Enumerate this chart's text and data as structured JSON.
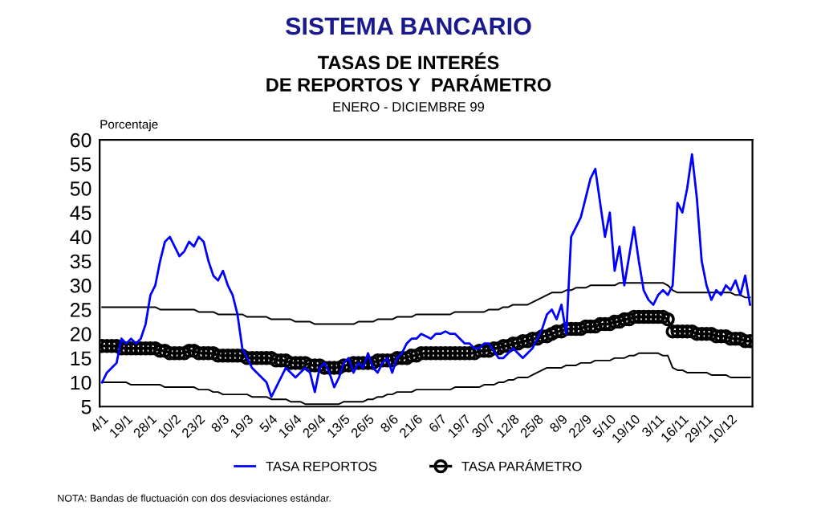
{
  "chart_data": {
    "type": "line",
    "title": "SISTEMA BANCARIO",
    "subtitle": "TASAS DE INTERÉS\nDE REPORTOS Y  PARÁMETRO\nENERO - DICIEMBRE 99",
    "ylabel": "Porcentaje",
    "annotations": [
      "NOTA: Bandas de fluctuación con dos desviaciones estándar."
    ],
    "categories": [
      "4/1",
      null,
      null,
      null,
      null,
      "19/1",
      null,
      null,
      null,
      null,
      "28/1",
      null,
      null,
      null,
      null,
      "10/2",
      null,
      null,
      null,
      null,
      "23/2",
      null,
      null,
      null,
      null,
      "8/3",
      null,
      null,
      null,
      null,
      "19/3",
      null,
      null,
      null,
      null,
      "5/4",
      null,
      null,
      null,
      null,
      "16/4",
      null,
      null,
      null,
      null,
      "29/4",
      null,
      null,
      null,
      null,
      "13/5",
      null,
      null,
      null,
      null,
      "26/5",
      null,
      null,
      null,
      null,
      "8/6",
      null,
      null,
      null,
      null,
      "21/6",
      null,
      null,
      null,
      null,
      "6/7",
      null,
      null,
      null,
      null,
      "19/7",
      null,
      null,
      null,
      null,
      "30/7",
      null,
      null,
      null,
      null,
      "12/8",
      null,
      null,
      null,
      null,
      "25/8",
      null,
      null,
      null,
      null,
      "8/9",
      null,
      null,
      null,
      null,
      "22/9",
      null,
      null,
      null,
      null,
      "5/10",
      null,
      null,
      null,
      null,
      "19/10",
      null,
      null,
      null,
      null,
      "3/11",
      null,
      null,
      null,
      null,
      "16/11",
      null,
      null,
      null,
      null,
      "29/11",
      null,
      null,
      null,
      null,
      "10/12",
      null,
      null,
      null,
      null
    ],
    "ylim": [
      5,
      60
    ],
    "yticks": [
      5,
      10,
      15,
      20,
      25,
      30,
      35,
      40,
      45,
      50,
      55,
      60
    ],
    "grid": false,
    "legend": "bottom",
    "series": [
      {
        "name": "TASA REPORTOS",
        "color": "#0000ff",
        "marker": "none",
        "values": [
          10,
          12,
          13,
          14,
          19,
          18,
          19,
          18,
          19,
          22,
          28,
          30,
          35,
          39,
          40,
          38,
          36,
          37,
          39,
          38,
          40,
          39,
          35,
          32,
          31,
          33,
          30,
          28,
          24,
          17,
          15,
          13,
          12,
          11,
          10,
          7,
          9,
          11,
          13,
          12,
          11,
          12,
          13,
          12,
          8,
          13,
          14,
          12,
          9,
          11,
          14,
          15,
          12,
          14,
          13,
          16,
          13,
          12,
          14,
          15,
          12,
          15,
          16,
          18,
          19,
          19,
          20,
          19.5,
          19,
          20,
          20,
          20.5,
          20,
          20,
          19,
          18,
          18,
          17,
          17,
          18,
          18,
          16.5,
          15,
          15,
          16,
          17,
          16,
          15,
          16,
          17,
          19,
          21,
          24,
          25,
          23,
          26,
          20,
          40,
          42,
          44,
          48,
          52,
          54,
          47,
          40,
          45,
          33,
          38,
          30,
          36,
          42,
          35,
          29,
          27,
          26,
          28,
          29,
          28,
          30,
          47,
          45,
          50,
          57,
          48,
          35,
          30,
          27,
          29,
          28,
          30,
          29,
          31,
          28,
          32,
          26
        ]
      },
      {
        "name": "TASA PARÁMETRO",
        "color": "#000000",
        "marker": "circle",
        "values": [
          17.5,
          17.5,
          17.5,
          17.5,
          17,
          17,
          17,
          17,
          17,
          17,
          17,
          17,
          16.5,
          16.5,
          16,
          16,
          16,
          16,
          16.5,
          16.5,
          16,
          16,
          16,
          16,
          15.5,
          15.5,
          15.5,
          15.5,
          15.5,
          15.5,
          15,
          15,
          15,
          15,
          15,
          15,
          14.5,
          14.5,
          14.5,
          14,
          14,
          14,
          14,
          13.5,
          13.5,
          13.5,
          13,
          13,
          13,
          13,
          13.5,
          13.5,
          14,
          14,
          14,
          14,
          14,
          14.5,
          14.5,
          14.5,
          14.5,
          15,
          15,
          15,
          15.5,
          15.5,
          16,
          16,
          16,
          16,
          16,
          16,
          16,
          16,
          16,
          16,
          16,
          16,
          16.5,
          16.5,
          16.5,
          17,
          17,
          17.5,
          17.5,
          18,
          18,
          18.5,
          18.5,
          19,
          19,
          19.5,
          19.5,
          20,
          20.5,
          20.5,
          21,
          21,
          21,
          21,
          21.5,
          21.5,
          21.5,
          22,
          22,
          22,
          22.5,
          22.5,
          23,
          23,
          23.5,
          23.5,
          23.5,
          23.5,
          23.5,
          23.5,
          23.5,
          23,
          20.5,
          20.5,
          20.5,
          20.5,
          20.5,
          20,
          20,
          20,
          20,
          19.5,
          19.5,
          19.5,
          19,
          19,
          19,
          18.5,
          18.5
        ]
      },
      {
        "color": "#000000",
        "marker": "none",
        "values": [
          25.5,
          25.5,
          25.5,
          25.5,
          25.5,
          25.5,
          25.5,
          25.5,
          25.5,
          25.5,
          25.5,
          25.5,
          25,
          25,
          25,
          25,
          25,
          25,
          25,
          25,
          24.5,
          24.5,
          24.5,
          24.5,
          24,
          24,
          24,
          24,
          24,
          24,
          23.5,
          23.5,
          23.5,
          23.5,
          23.5,
          23,
          23,
          23,
          23,
          23,
          22.5,
          22.5,
          22.5,
          22.5,
          22,
          22,
          22,
          22,
          22,
          22,
          22,
          22,
          22,
          22.5,
          22.5,
          22.5,
          22.5,
          23,
          23,
          23,
          23,
          23.5,
          23.5,
          23.5,
          23.5,
          24,
          24,
          24,
          24,
          24,
          24,
          24,
          24,
          24.5,
          24.5,
          24.5,
          24.5,
          24.5,
          24.5,
          24.5,
          25,
          25,
          25,
          25.5,
          25.5,
          26,
          26,
          26,
          26,
          26.5,
          27,
          27.5,
          28,
          28.5,
          28.5,
          28.5,
          29,
          29,
          29.5,
          29.5,
          29.5,
          30,
          30,
          30,
          30,
          30,
          30,
          30.5,
          30.5,
          30.5,
          30.5,
          30.5,
          30.5,
          30.5,
          30.5,
          30.5,
          30.5,
          30,
          29,
          28.5,
          28.5,
          28.5,
          28.5,
          28.5,
          28.5,
          28.5,
          28.5,
          28.5,
          28.5,
          28.5,
          28.5,
          28,
          28,
          27.5,
          27.5
        ]
      },
      {
        "color": "#000000",
        "marker": "none",
        "values": [
          10,
          10,
          10,
          10,
          10,
          10,
          9.5,
          9.5,
          9.5,
          9.5,
          9.5,
          9.5,
          9.5,
          9,
          9,
          9,
          9,
          9,
          9,
          9,
          8.5,
          8.5,
          8.5,
          8,
          8,
          7.5,
          7.5,
          7.5,
          7.5,
          7.5,
          7.5,
          7,
          7,
          7,
          7,
          6.5,
          6.5,
          6.5,
          6.5,
          6,
          6,
          6,
          5.5,
          5.5,
          5.5,
          5.5,
          5.5,
          5.5,
          5.5,
          5.5,
          6,
          6,
          6,
          6,
          6,
          6.5,
          6.5,
          7,
          7,
          7.5,
          7.5,
          8,
          8,
          8,
          8,
          8.5,
          8.5,
          8.5,
          8.5,
          8.5,
          8.5,
          8.5,
          8.5,
          9,
          9,
          9,
          9,
          9,
          9,
          9.5,
          9.5,
          9.5,
          10,
          10,
          10.5,
          10.5,
          11,
          11,
          11,
          11.5,
          12,
          12.5,
          13,
          13,
          13,
          13,
          13.5,
          13.5,
          13.5,
          14,
          14,
          14,
          14.5,
          14.5,
          14.5,
          14.5,
          15,
          15,
          15,
          15.5,
          15.5,
          16,
          16,
          16,
          16,
          16,
          15.5,
          15.5,
          13,
          12.5,
          12.5,
          12,
          12,
          12,
          12,
          12,
          11.5,
          11.5,
          11.5,
          11.5,
          11,
          11,
          11,
          11,
          11
        ]
      }
    ]
  }
}
